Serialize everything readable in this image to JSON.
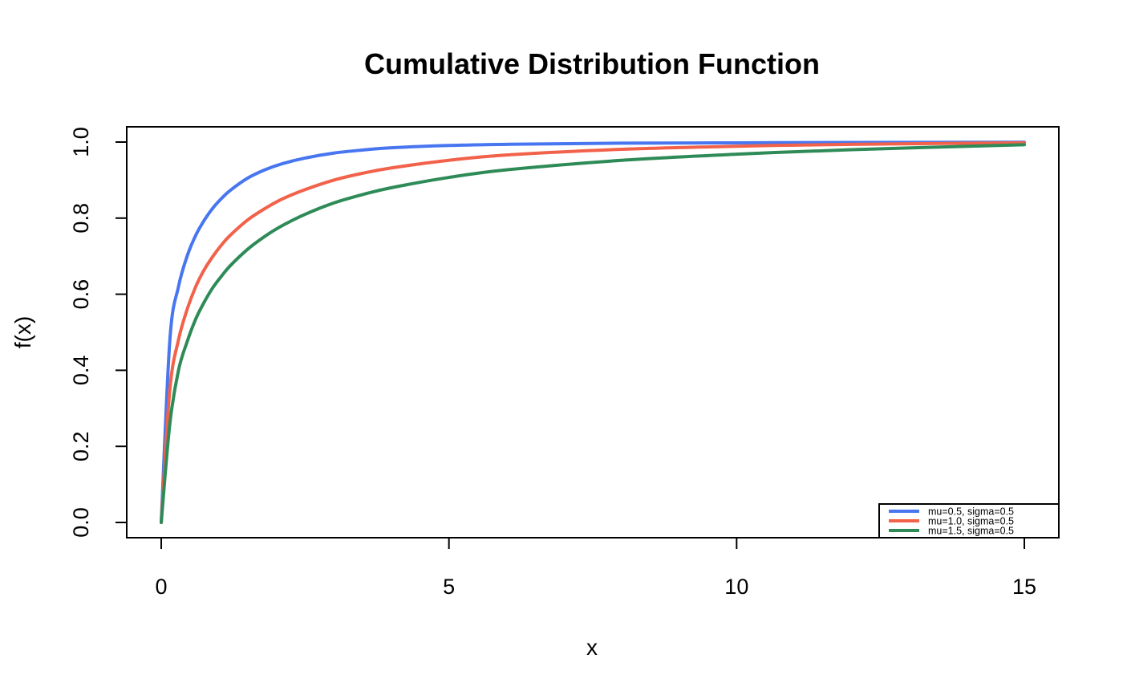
{
  "chart_data": {
    "type": "line",
    "title": "Cumulative Distribution Function",
    "xlabel": "x",
    "ylabel": "f(x)",
    "xlim": [
      0,
      15
    ],
    "ylim": [
      0,
      1
    ],
    "xticks": [
      0,
      5,
      10,
      15
    ],
    "xtick_labels": [
      "0",
      "5",
      "10",
      "15"
    ],
    "yticks": [
      0,
      0.2,
      0.4,
      0.6,
      0.8,
      1
    ],
    "ytick_labels": [
      "0.0",
      "0.2",
      "0.4",
      "0.6",
      "0.8",
      "1.0"
    ],
    "grid": false,
    "legend_position": "bottom-right",
    "series": [
      {
        "name": "mu=0.5, sigma=0.5",
        "color": "#4876F0",
        "x": [
          0,
          0.15,
          0.3,
          0.45,
          0.6,
          0.75,
          0.9,
          1.05,
          1.2,
          1.5,
          1.8,
          2.1,
          2.5,
          3,
          3.5,
          4,
          5,
          6,
          8,
          10,
          12,
          15
        ],
        "y": [
          0,
          0.48,
          0.62,
          0.7,
          0.755,
          0.795,
          0.827,
          0.852,
          0.873,
          0.905,
          0.927,
          0.943,
          0.958,
          0.971,
          0.979,
          0.985,
          0.991,
          0.994,
          0.997,
          0.998,
          0.999,
          0.9995
        ]
      },
      {
        "name": "mu=1.0, sigma=0.5",
        "color": "#F2614A",
        "x": [
          0,
          0.15,
          0.3,
          0.45,
          0.6,
          0.75,
          0.9,
          1.05,
          1.2,
          1.5,
          1.8,
          2.1,
          2.5,
          3,
          3.5,
          4,
          5,
          6,
          8,
          10,
          12,
          15
        ],
        "y": [
          0,
          0.35,
          0.48,
          0.56,
          0.62,
          0.665,
          0.7,
          0.73,
          0.755,
          0.795,
          0.825,
          0.85,
          0.875,
          0.9,
          0.918,
          0.932,
          0.952,
          0.966,
          0.981,
          0.989,
          0.994,
          0.998
        ]
      },
      {
        "name": "mu=1.5, sigma=0.5",
        "color": "#2E8B57",
        "x": [
          0,
          0.15,
          0.3,
          0.45,
          0.6,
          0.75,
          0.9,
          1.05,
          1.2,
          1.5,
          1.8,
          2.1,
          2.5,
          3,
          3.5,
          4,
          5,
          6,
          8,
          10,
          12,
          15
        ],
        "y": [
          0,
          0.26,
          0.4,
          0.475,
          0.535,
          0.58,
          0.618,
          0.648,
          0.675,
          0.718,
          0.752,
          0.78,
          0.81,
          0.84,
          0.862,
          0.88,
          0.907,
          0.927,
          0.952,
          0.968,
          0.98,
          0.993
        ]
      }
    ]
  }
}
